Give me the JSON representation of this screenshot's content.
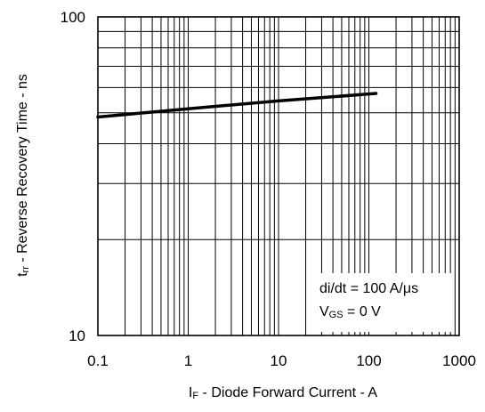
{
  "chart_data": {
    "type": "line",
    "x_scale": "log",
    "y_scale": "log",
    "xlim": [
      0.1,
      1000
    ],
    "ylim": [
      10,
      100
    ],
    "grid": true,
    "x_ticks": [
      "0.1",
      "1",
      "10",
      "100",
      "1000"
    ],
    "y_ticks": [
      "10",
      "100"
    ],
    "xlabel": {
      "main": "I",
      "sub": "F",
      "rest": " - Diode Forward Current - A"
    },
    "ylabel": {
      "main": "t",
      "sub": "rr",
      "rest": " - Reverse Recovery Time - ns"
    },
    "annotations": [
      {
        "main": "di/dt = 100 A/μs",
        "sub": "",
        "rest": ""
      },
      {
        "main": "V",
        "sub": "GS",
        "rest": " = 0 V"
      }
    ],
    "series": [
      {
        "x": [
          0.1,
          1,
          10,
          120
        ],
        "y": [
          48.5,
          51.5,
          54.5,
          57.5
        ],
        "color": "#000000"
      }
    ]
  }
}
